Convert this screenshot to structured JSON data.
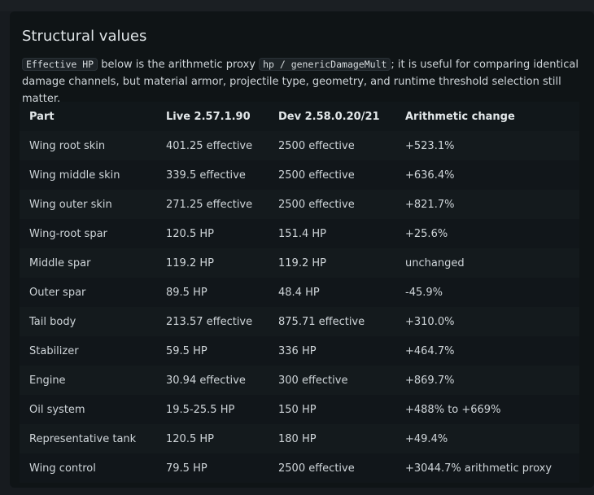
{
  "section": {
    "title": "Structural values",
    "desc_code1": "Effective HP",
    "desc_text1": " below is the arithmetic proxy ",
    "desc_code2": "hp / genericDamageMult",
    "desc_text2": "; it is useful for comparing identical damage channels, but material armor, projectile type, geometry, and runtime threshold selection still matter."
  },
  "table": {
    "headers": [
      "Part",
      "Live 2.57.1.90",
      "Dev 2.58.0.20/21",
      "Arithmetic change"
    ],
    "rows": [
      [
        "Wing root skin",
        "401.25 effective",
        "2500 effective",
        "+523.1%"
      ],
      [
        "Wing middle skin",
        "339.5 effective",
        "2500 effective",
        "+636.4%"
      ],
      [
        "Wing outer skin",
        "271.25 effective",
        "2500 effective",
        "+821.7%"
      ],
      [
        "Wing-root spar",
        "120.5 HP",
        "151.4 HP",
        "+25.6%"
      ],
      [
        "Middle spar",
        "119.2 HP",
        "119.2 HP",
        "unchanged"
      ],
      [
        "Outer spar",
        "89.5 HP",
        "48.4 HP",
        "-45.9%"
      ],
      [
        "Tail body",
        "213.57 effective",
        "875.71 effective",
        "+310.0%"
      ],
      [
        "Stabilizer",
        "59.5 HP",
        "336 HP",
        "+464.7%"
      ],
      [
        "Engine",
        "30.94 effective",
        "300 effective",
        "+869.7%"
      ],
      [
        "Oil system",
        "19.5-25.5 HP",
        "150 HP",
        "+488% to +669%"
      ],
      [
        "Representative tank",
        "120.5 HP",
        "180 HP",
        "+49.4%"
      ],
      [
        "Wing control",
        "79.5 HP",
        "2500 effective",
        "+3044.7% arithmetic proxy"
      ]
    ]
  }
}
